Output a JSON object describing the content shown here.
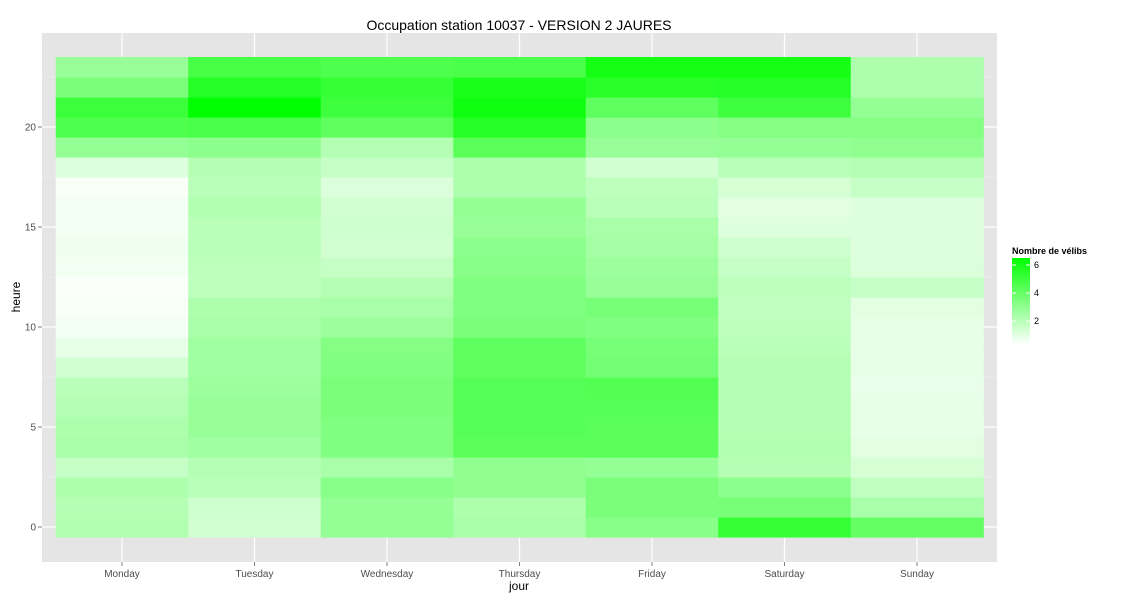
{
  "chart_data": {
    "type": "heatmap",
    "title": "Occupation station 10037 - VERSION 2 JAURES",
    "xlabel": "jour",
    "ylabel": "heure",
    "x_categories": [
      "Monday",
      "Tuesday",
      "Wednesday",
      "Thursday",
      "Friday",
      "Saturday",
      "Sunday"
    ],
    "y_range": [
      0,
      23
    ],
    "y_ticks": [
      0,
      5,
      10,
      15,
      20
    ],
    "grid": true,
    "legend": {
      "title": "Nombre de vélibs",
      "position": "right",
      "ticks": [
        2,
        4,
        6
      ],
      "min": 0.3,
      "max": 6.5,
      "low_color": "#ffffff",
      "high_color": "#00ff00"
    },
    "panel_color": "#e5e5e5",
    "values": [
      [
        2.2,
        1.4,
        2.9,
        2.4,
        3.2,
        5.2,
        4.1
      ],
      [
        2.1,
        1.5,
        2.9,
        2.3,
        3.5,
        3.6,
        2.4
      ],
      [
        2.3,
        2.0,
        3.2,
        3.0,
        3.5,
        3.1,
        1.8
      ],
      [
        1.7,
        2.1,
        2.4,
        3.0,
        2.9,
        2.1,
        1.3
      ],
      [
        2.4,
        2.6,
        3.4,
        4.3,
        4.3,
        2.2,
        1.0
      ],
      [
        2.3,
        2.8,
        3.4,
        4.4,
        4.3,
        2.1,
        0.9
      ],
      [
        2.1,
        2.8,
        3.5,
        4.4,
        4.4,
        2.1,
        0.9
      ],
      [
        2.0,
        2.7,
        3.5,
        4.4,
        4.5,
        2.1,
        0.8
      ],
      [
        1.4,
        2.6,
        3.4,
        4.2,
        3.7,
        2.1,
        0.9
      ],
      [
        0.9,
        2.6,
        3.3,
        4.2,
        3.6,
        2.0,
        0.9
      ],
      [
        0.6,
        2.4,
        2.7,
        3.5,
        3.4,
        1.9,
        0.9
      ],
      [
        0.5,
        2.3,
        2.4,
        3.4,
        3.6,
        1.8,
        1.0
      ],
      [
        0.4,
        1.9,
        2.1,
        3.4,
        2.8,
        1.9,
        1.7
      ],
      [
        0.6,
        1.9,
        1.7,
        3.2,
        2.7,
        1.7,
        1.2
      ],
      [
        0.7,
        2.0,
        1.4,
        3.1,
        2.5,
        1.5,
        1.1
      ],
      [
        0.6,
        2.0,
        1.5,
        2.8,
        2.4,
        1.1,
        1.1
      ],
      [
        0.6,
        2.2,
        1.4,
        2.9,
        2.0,
        1.0,
        1.1
      ],
      [
        0.5,
        2.0,
        1.2,
        2.3,
        1.9,
        1.3,
        1.7
      ],
      [
        1.1,
        2.1,
        1.7,
        2.3,
        1.4,
        2.0,
        2.1
      ],
      [
        2.9,
        3.1,
        2.1,
        4.3,
        2.8,
        2.9,
        3.0
      ],
      [
        4.6,
        4.7,
        4.2,
        5.6,
        3.1,
        3.3,
        3.3
      ],
      [
        5.1,
        6.5,
        5.0,
        6.1,
        4.2,
        5.0,
        2.9
      ],
      [
        3.5,
        5.6,
        5.2,
        5.9,
        5.5,
        5.6,
        2.3
      ],
      [
        2.8,
        4.8,
        4.6,
        4.7,
        6.0,
        6.0,
        2.3
      ]
    ]
  }
}
